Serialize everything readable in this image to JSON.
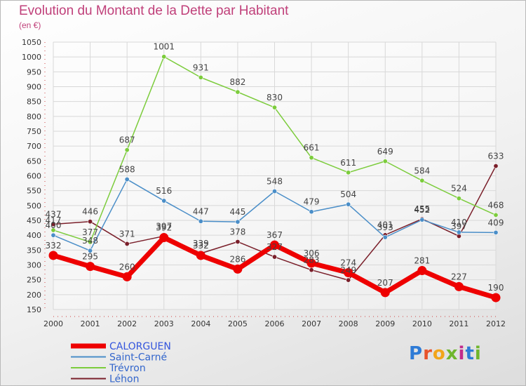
{
  "title": "Evolution du Montant de la Dette par Habitant",
  "subtitle": "(en €)",
  "logo": {
    "text": "Proxiti",
    "letter_colors": [
      "#2e7bd6",
      "#e8532b",
      "#f2a51a",
      "#6fb62c",
      "#c22c8c",
      "#2e7bd6",
      "#6fb62c"
    ]
  },
  "chart_data": {
    "type": "line",
    "x": [
      "2000",
      "2001",
      "2002",
      "2003",
      "2004",
      "2005",
      "2006",
      "2007",
      "2008",
      "2009",
      "2010",
      "2011",
      "2012"
    ],
    "ylim": [
      150,
      1050
    ],
    "yticks": [
      150,
      200,
      250,
      300,
      350,
      400,
      450,
      500,
      550,
      600,
      650,
      700,
      750,
      800,
      850,
      900,
      950,
      1000,
      1050
    ],
    "grid": true,
    "legend_position": "bottom-left",
    "series": [
      {
        "name": "Léhon",
        "color": "#7a1f2a",
        "values": [
          437,
          446,
          371,
          397,
          339,
          378,
          327,
          283,
          249,
          401,
          455,
          397,
          633
        ]
      },
      {
        "name": "Trévron",
        "color": "#7ccc3c",
        "values": [
          417,
          377,
          687,
          1001,
          931,
          882,
          830,
          661,
          611,
          649,
          584,
          524,
          468
        ]
      },
      {
        "name": "Saint-Carné",
        "color": "#4a8ec8",
        "values": [
          400,
          348,
          588,
          516,
          447,
          445,
          548,
          479,
          504,
          393,
          452,
          410,
          409
        ]
      },
      {
        "name": "CALORGUEN",
        "color": "#ee0000",
        "values": [
          332,
          295,
          260,
          392,
          332,
          286,
          367,
          306,
          274,
          207,
          281,
          227,
          190
        ]
      }
    ]
  }
}
